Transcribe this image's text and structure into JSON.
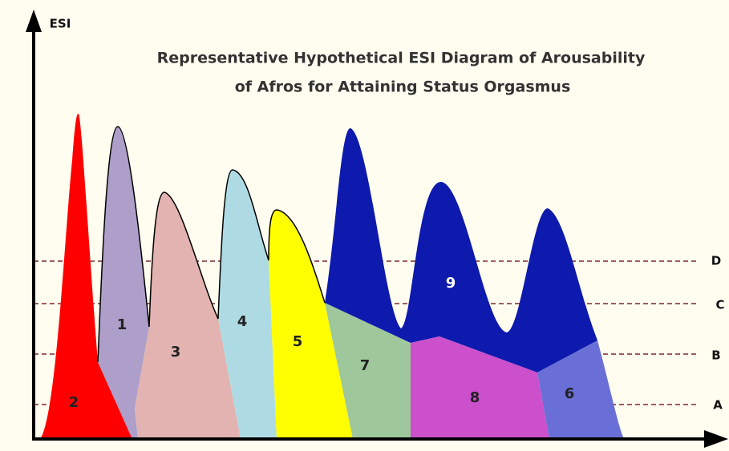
{
  "title_lines": [
    "Representative Hypothetical ESI Diagram of Arousability",
    "of Afros for Attaining Status Orgasmus"
  ],
  "axis_label": "ESI",
  "levels": [
    "D",
    "C",
    "B",
    "A"
  ],
  "regions": [
    "2",
    "1",
    "3",
    "4",
    "5",
    "7",
    "9",
    "8",
    "6"
  ]
}
